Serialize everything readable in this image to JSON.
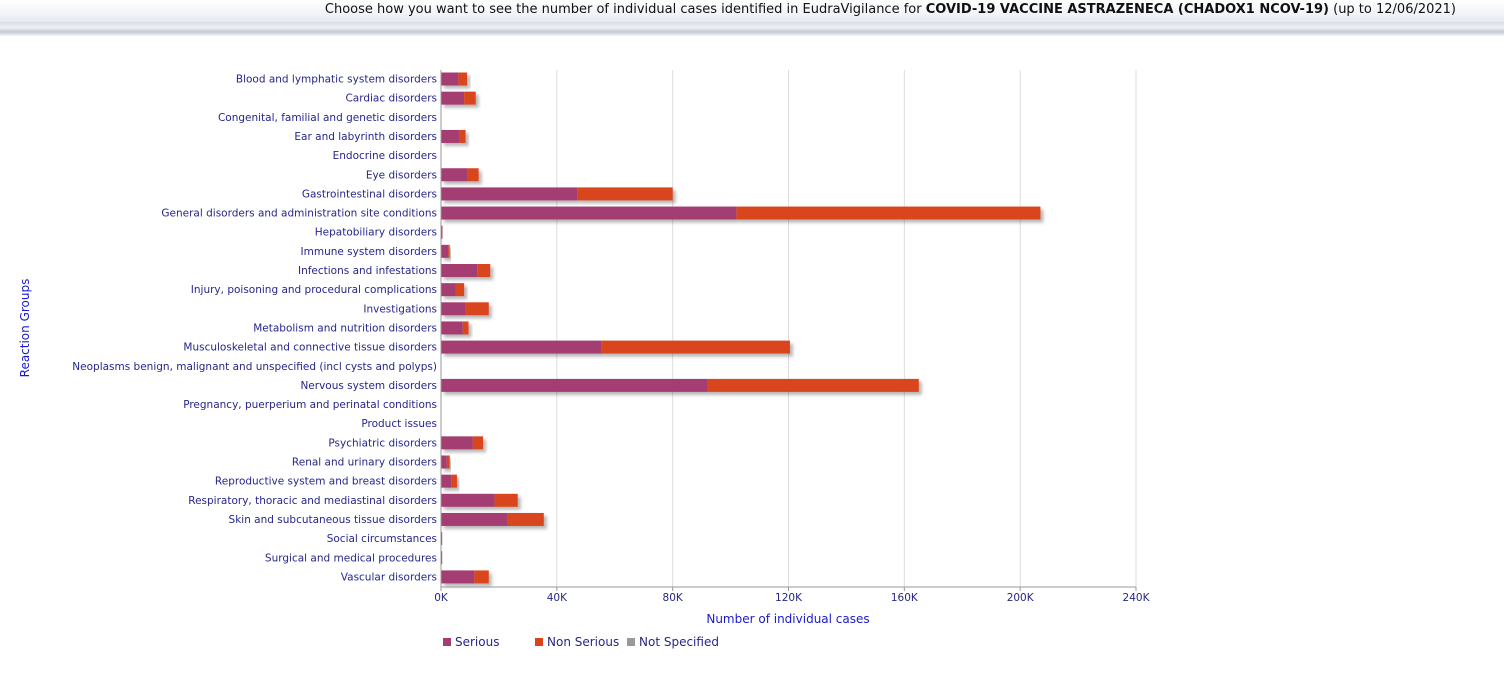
{
  "header": {
    "prefix": "Choose how you want to see the number of individual cases identified in EudraVigilance for ",
    "product": "COVID-19 VACCINE ASTRAZENECA (CHADOX1 NCOV-19)",
    "suffix": " (up to 12/06/2021)"
  },
  "colors": {
    "serious": "#a43c72",
    "non_serious": "#d9441a",
    "not_specified": "#999999",
    "grid": "#dddddd",
    "axis": "#999999"
  },
  "legend": [
    {
      "label": "Serious",
      "color": "#a43c72"
    },
    {
      "label": "Non Serious",
      "color": "#d9441a"
    },
    {
      "label": "Not Specified",
      "color": "#999999"
    }
  ],
  "chart_data": {
    "type": "bar",
    "orientation": "horizontal",
    "stacked": true,
    "xlabel": "Number of individual cases",
    "ylabel": "Reaction Groups",
    "xlim": [
      0,
      240000
    ],
    "xticks": [
      "0K",
      "40K",
      "80K",
      "120K",
      "160K",
      "200K",
      "240K"
    ],
    "grid": true,
    "legend_position": "bottom",
    "categories": [
      "Blood and lymphatic system disorders",
      "Cardiac disorders",
      "Congenital, familial and genetic disorders",
      "Ear and labyrinth disorders",
      "Endocrine disorders",
      "Eye disorders",
      "Gastrointestinal disorders",
      "General disorders and administration site conditions",
      "Hepatobiliary disorders",
      "Immune system disorders",
      "Infections and infestations",
      "Injury, poisoning and procedural complications",
      "Investigations",
      "Metabolism and nutrition disorders",
      "Musculoskeletal and connective tissue disorders",
      "Neoplasms benign, malignant and unspecified (incl cysts and polyps)",
      "Nervous system disorders",
      "Pregnancy, puerperium and perinatal conditions",
      "Product issues",
      "Psychiatric disorders",
      "Renal and urinary disorders",
      "Reproductive system and breast disorders",
      "Respiratory, thoracic and mediastinal disorders",
      "Skin and subcutaneous tissue disorders",
      "Social circumstances",
      "Surgical and medical procedures",
      "Vascular disorders"
    ],
    "series": [
      {
        "name": "Serious",
        "values": [
          6000,
          8000,
          0,
          6500,
          0,
          9000,
          47000,
          102000,
          500,
          2500,
          12500,
          5000,
          8500,
          7500,
          55500,
          0,
          92000,
          0,
          0,
          11000,
          2000,
          3500,
          18500,
          23000,
          200,
          300,
          11500
        ]
      },
      {
        "name": "Non Serious",
        "values": [
          3000,
          4000,
          0,
          2000,
          0,
          4000,
          33000,
          105000,
          0,
          500,
          4500,
          3000,
          8000,
          2000,
          65000,
          0,
          73000,
          0,
          0,
          3500,
          1000,
          2000,
          8000,
          12500,
          0,
          0,
          5000
        ]
      },
      {
        "name": "Not Specified",
        "values": [
          0,
          0,
          0,
          0,
          0,
          0,
          0,
          0,
          0,
          0,
          0,
          0,
          0,
          0,
          0,
          0,
          0,
          0,
          0,
          0,
          0,
          0,
          0,
          0,
          0,
          0,
          0
        ]
      }
    ]
  }
}
